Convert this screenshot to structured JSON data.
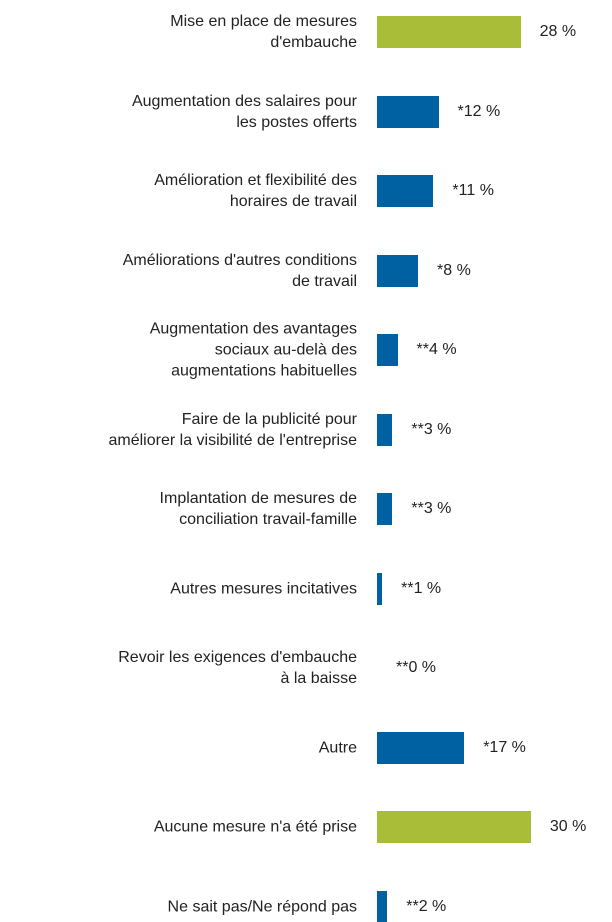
{
  "chart_data": {
    "type": "bar",
    "orientation": "horizontal",
    "categories": [
      "Mise en place de mesures\nd'embauche",
      "Augmentation des salaires pour\nles postes offerts",
      "Amélioration et flexibilité des\nhoraires de travail",
      "Améliorations d'autres conditions\nde travail",
      "Augmentation des avantages\nsociaux au-delà des\naugmentations habituelles",
      "Faire de la publicité pour\naméliorer la visibilité de l'entreprise",
      "Implantation de mesures de\nconciliation travail-famille",
      "Autres mesures incitatives",
      "Revoir les exigences d'embauche\nà la baisse",
      "Autre",
      "Aucune mesure n'a été prise",
      "Ne sait pas/Ne répond pas"
    ],
    "values": [
      28,
      12,
      11,
      8,
      4,
      3,
      3,
      1,
      0,
      17,
      30,
      2
    ],
    "value_labels": [
      "28 %",
      "*12 %",
      "*11 %",
      "*8 %",
      "**4 %",
      "**3 %",
      "**3 %",
      "**1 %",
      "**0 %",
      "*17 %",
      "30 %",
      "**2 %"
    ],
    "colors": [
      "#a9bd38",
      "#0061a2",
      "#0061a2",
      "#0061a2",
      "#0061a2",
      "#0061a2",
      "#0061a2",
      "#0061a2",
      "#0061a2",
      "#0061a2",
      "#a9bd38",
      "#0061a2"
    ]
  }
}
